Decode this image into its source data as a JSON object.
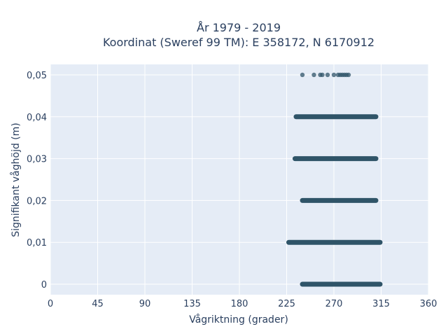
{
  "chart_data": {
    "type": "scatter",
    "title": "År 1979 - 2019",
    "subtitle": "Koordinat (Sweref 99 TM): E 358172, N 6170912",
    "xlabel": "Vågriktning (grader)",
    "ylabel": "Signifikant våghöjd (m)",
    "xlim": [
      0,
      360
    ],
    "ylim": [
      -0.0025,
      0.0525
    ],
    "xticks": [
      0,
      45,
      90,
      135,
      180,
      225,
      270,
      315,
      360
    ],
    "xtick_labels": [
      "0",
      "45",
      "90",
      "135",
      "180",
      "225",
      "270",
      "315",
      "360"
    ],
    "yticks": [
      0,
      0.01,
      0.02,
      0.03,
      0.04,
      0.05
    ],
    "ytick_labels": [
      "0",
      "0,01",
      "0,02",
      "0,03",
      "0,04",
      "0,05"
    ],
    "grid": true,
    "marker_color": "#2f5468",
    "bands": [
      {
        "y": 0.0,
        "x_min": 240,
        "x_max": 314
      },
      {
        "y": 0.01,
        "x_min": 227,
        "x_max": 314
      },
      {
        "y": 0.02,
        "x_min": 240,
        "x_max": 310
      },
      {
        "y": 0.03,
        "x_min": 233,
        "x_max": 310
      },
      {
        "y": 0.04,
        "x_min": 234,
        "x_max": 310
      }
    ],
    "points": [
      {
        "x": 240,
        "y": 0.05
      },
      {
        "x": 251,
        "y": 0.05
      },
      {
        "x": 257,
        "y": 0.05
      },
      {
        "x": 259,
        "y": 0.05
      },
      {
        "x": 264,
        "y": 0.05
      },
      {
        "x": 270,
        "y": 0.05
      },
      {
        "x": 274,
        "y": 0.05
      },
      {
        "x": 276,
        "y": 0.05
      },
      {
        "x": 278,
        "y": 0.05
      },
      {
        "x": 280,
        "y": 0.05
      },
      {
        "x": 282,
        "y": 0.05
      },
      {
        "x": 284,
        "y": 0.05
      },
      {
        "x": 233,
        "y": 0.03
      },
      {
        "x": 227,
        "y": 0.01
      },
      {
        "x": 240,
        "y": 0.0
      }
    ]
  }
}
